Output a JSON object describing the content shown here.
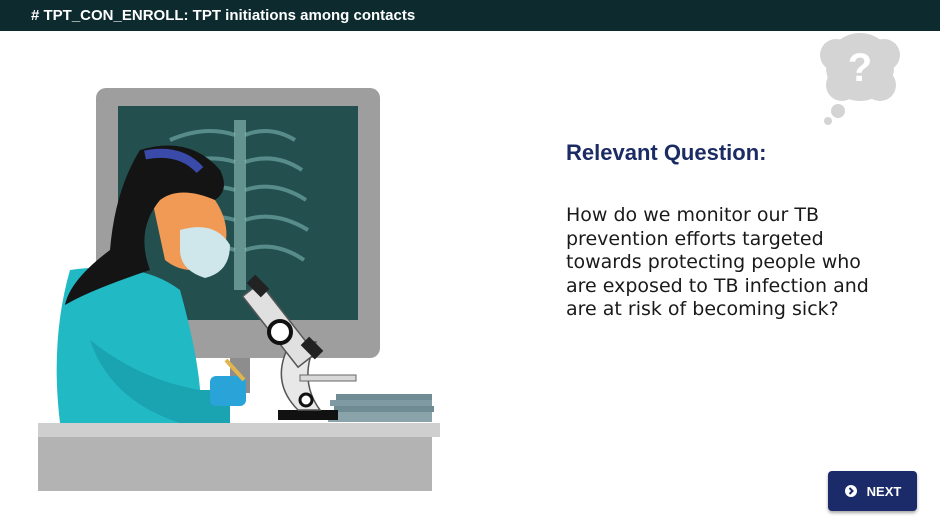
{
  "header": {
    "title": "# TPT_CON_ENROLL: TPT initiations among contacts"
  },
  "illustration": {
    "icon": "lab-technician-microscope-illustration"
  },
  "thought_bubble": {
    "icon": "question-mark-icon",
    "symbol": "?"
  },
  "question": {
    "title": "Relevant Question:",
    "body": "How do we monitor our TB prevention efforts targeted towards protecting people who are exposed to TB infection and are at risk of becoming sick?"
  },
  "navigation": {
    "next_label": "NEXT",
    "next_icon": "chevron-right-circle-icon"
  },
  "colors": {
    "header_bg": "#0d2a2e",
    "title": "#1b2b63",
    "button": "#1b2b6a"
  }
}
